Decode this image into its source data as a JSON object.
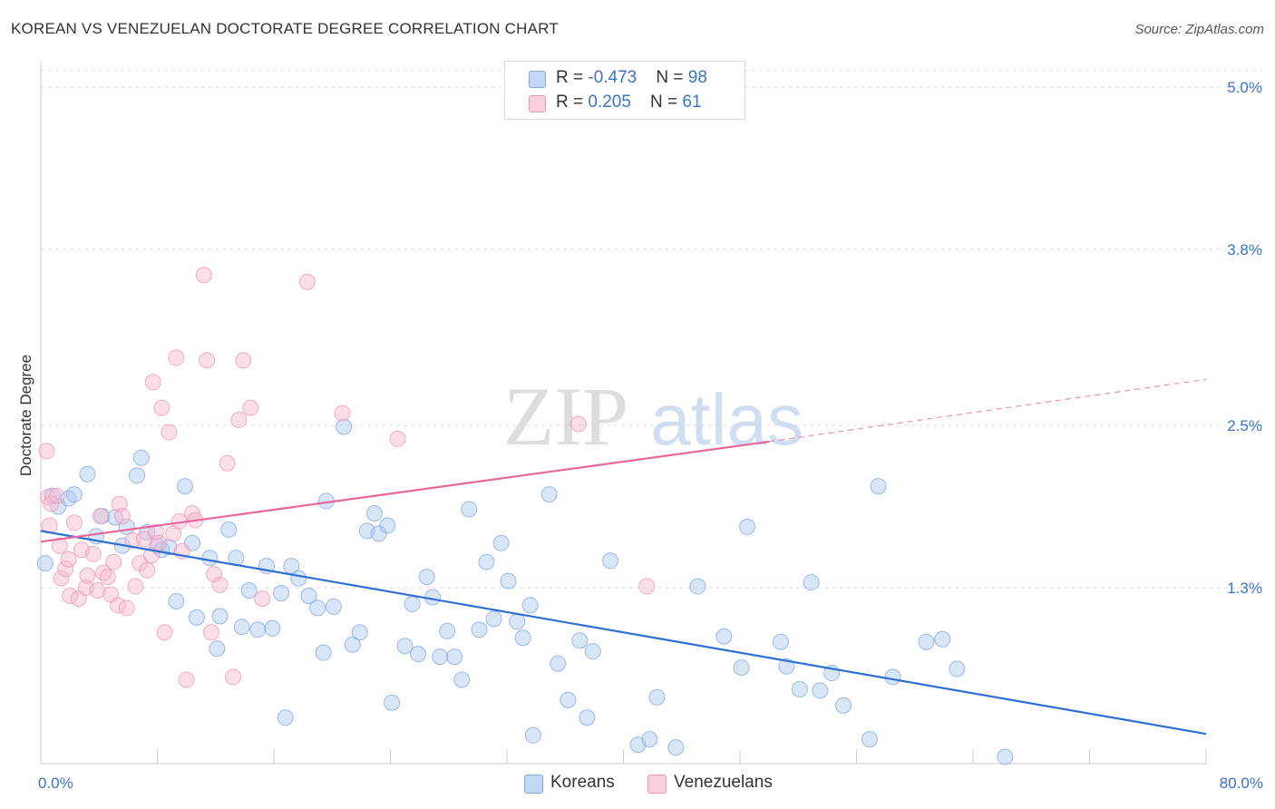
{
  "title": "KOREAN VS VENEZUELAN DOCTORATE DEGREE CORRELATION CHART",
  "source": "Source: ZipAtlas.com",
  "watermark": {
    "zip": "ZIP",
    "atlas": "atlas"
  },
  "legend_top": {
    "rows": [
      {
        "r_label": "R = ",
        "r_value": "-0.473",
        "n_label": "N = ",
        "n_value": "98"
      },
      {
        "r_label": "R = ",
        "r_value": " 0.205",
        "n_label": "N = ",
        "n_value": " 61"
      }
    ]
  },
  "chart_data": {
    "type": "scatter",
    "ylabel": "Doctorate Degree",
    "xlim": [
      0,
      80
    ],
    "ylim": [
      0,
      5.2
    ],
    "x_ticks": [
      {
        "value": 0,
        "label": "0.0%"
      },
      {
        "value": 80,
        "label": "80.0%"
      }
    ],
    "y_ticks": [
      {
        "value": 1.3,
        "label": "1.3%"
      },
      {
        "value": 2.5,
        "label": "2.5%"
      },
      {
        "value": 3.8,
        "label": "3.8%"
      },
      {
        "value": 5.0,
        "label": "5.0%"
      }
    ],
    "grid": "horizontal dashed",
    "legend_position": "bottom-center",
    "series": [
      {
        "name": "Koreans",
        "color": "#a9c7ef",
        "line_color": "#2f6fd1",
        "trend": {
          "x": [
            0,
            80
          ],
          "y": [
            1.72,
            0.22
          ],
          "style": "solid"
        },
        "points": [
          [
            0.3,
            1.48
          ],
          [
            0.8,
            1.98
          ],
          [
            1.2,
            1.9
          ],
          [
            1.9,
            1.96
          ],
          [
            2.3,
            1.99
          ],
          [
            3.2,
            2.14
          ],
          [
            3.8,
            1.68
          ],
          [
            4.2,
            1.83
          ],
          [
            5.1,
            1.82
          ],
          [
            5.6,
            1.61
          ],
          [
            5.9,
            1.75
          ],
          [
            6.6,
            2.13
          ],
          [
            6.9,
            2.26
          ],
          [
            7.3,
            1.71
          ],
          [
            8.0,
            1.61
          ],
          [
            8.3,
            1.58
          ],
          [
            8.8,
            1.6
          ],
          [
            9.3,
            1.2
          ],
          [
            9.9,
            2.05
          ],
          [
            10.4,
            1.63
          ],
          [
            10.7,
            1.08
          ],
          [
            11.6,
            1.52
          ],
          [
            12.1,
            0.85
          ],
          [
            12.3,
            1.09
          ],
          [
            12.9,
            1.73
          ],
          [
            13.4,
            1.52
          ],
          [
            13.8,
            1.01
          ],
          [
            14.3,
            1.28
          ],
          [
            14.9,
            0.99
          ],
          [
            15.5,
            1.46
          ],
          [
            15.9,
            1.0
          ],
          [
            16.5,
            1.26
          ],
          [
            16.8,
            0.34
          ],
          [
            17.2,
            1.46
          ],
          [
            17.7,
            1.37
          ],
          [
            18.4,
            1.24
          ],
          [
            19.0,
            1.15
          ],
          [
            19.4,
            0.82
          ],
          [
            19.6,
            1.94
          ],
          [
            20.1,
            1.16
          ],
          [
            20.8,
            2.49
          ],
          [
            21.4,
            0.88
          ],
          [
            21.9,
            0.97
          ],
          [
            22.4,
            1.72
          ],
          [
            22.9,
            1.85
          ],
          [
            23.2,
            1.7
          ],
          [
            23.8,
            1.76
          ],
          [
            24.1,
            0.45
          ],
          [
            25.0,
            0.87
          ],
          [
            25.5,
            1.18
          ],
          [
            25.9,
            0.81
          ],
          [
            26.5,
            1.38
          ],
          [
            26.9,
            1.23
          ],
          [
            27.4,
            0.79
          ],
          [
            27.9,
            0.98
          ],
          [
            28.4,
            0.79
          ],
          [
            28.9,
            0.62
          ],
          [
            29.4,
            1.88
          ],
          [
            30.1,
            0.99
          ],
          [
            30.6,
            1.49
          ],
          [
            31.1,
            1.07
          ],
          [
            31.6,
            1.63
          ],
          [
            32.1,
            1.35
          ],
          [
            32.7,
            1.05
          ],
          [
            33.1,
            0.93
          ],
          [
            33.6,
            1.17
          ],
          [
            33.8,
            0.21
          ],
          [
            34.9,
            1.99
          ],
          [
            35.5,
            0.74
          ],
          [
            36.2,
            0.47
          ],
          [
            37.0,
            0.91
          ],
          [
            37.5,
            0.34
          ],
          [
            37.9,
            0.83
          ],
          [
            39.1,
            1.5
          ],
          [
            41.0,
            0.14
          ],
          [
            41.8,
            0.18
          ],
          [
            42.3,
            0.49
          ],
          [
            43.6,
            0.12
          ],
          [
            45.1,
            1.31
          ],
          [
            46.9,
            0.94
          ],
          [
            48.1,
            0.71
          ],
          [
            48.5,
            1.75
          ],
          [
            50.8,
            0.9
          ],
          [
            51.2,
            0.72
          ],
          [
            52.1,
            0.55
          ],
          [
            52.9,
            1.34
          ],
          [
            53.5,
            0.54
          ],
          [
            54.3,
            0.67
          ],
          [
            55.1,
            0.43
          ],
          [
            56.9,
            0.18
          ],
          [
            57.5,
            2.05
          ],
          [
            58.5,
            0.64
          ],
          [
            60.8,
            0.9
          ],
          [
            61.9,
            0.92
          ],
          [
            62.9,
            0.7
          ],
          [
            66.2,
            0.05
          ]
        ]
      },
      {
        "name": "Venezuelans",
        "color": "#f6b9cd",
        "line_color": "#e8679a",
        "trend": {
          "x": [
            0,
            50
          ],
          "y": [
            1.64,
            2.38
          ],
          "style": "solid"
        },
        "trend_extension": {
          "x": [
            50,
            80
          ],
          "y": [
            2.38,
            2.84
          ],
          "style": "dashed"
        },
        "points": [
          [
            0.4,
            2.31
          ],
          [
            0.5,
            1.97
          ],
          [
            0.6,
            1.76
          ],
          [
            0.7,
            1.92
          ],
          [
            1.1,
            1.98
          ],
          [
            1.3,
            1.61
          ],
          [
            1.4,
            1.37
          ],
          [
            1.7,
            1.44
          ],
          [
            1.9,
            1.51
          ],
          [
            2.0,
            1.24
          ],
          [
            2.3,
            1.78
          ],
          [
            2.6,
            1.22
          ],
          [
            2.8,
            1.58
          ],
          [
            3.1,
            1.3
          ],
          [
            3.2,
            1.39
          ],
          [
            3.6,
            1.55
          ],
          [
            3.9,
            1.28
          ],
          [
            4.1,
            1.83
          ],
          [
            4.3,
            1.41
          ],
          [
            4.6,
            1.38
          ],
          [
            4.8,
            1.25
          ],
          [
            5.0,
            1.49
          ],
          [
            5.3,
            1.17
          ],
          [
            5.4,
            1.92
          ],
          [
            5.6,
            1.83
          ],
          [
            5.9,
            1.15
          ],
          [
            6.3,
            1.65
          ],
          [
            6.5,
            1.31
          ],
          [
            6.8,
            1.48
          ],
          [
            7.1,
            1.66
          ],
          [
            7.3,
            1.43
          ],
          [
            7.6,
            1.54
          ],
          [
            7.7,
            2.82
          ],
          [
            7.9,
            1.71
          ],
          [
            8.1,
            1.63
          ],
          [
            8.3,
            2.63
          ],
          [
            8.5,
            0.97
          ],
          [
            8.8,
            2.45
          ],
          [
            9.1,
            1.7
          ],
          [
            9.3,
            3.0
          ],
          [
            9.5,
            1.79
          ],
          [
            9.7,
            1.57
          ],
          [
            10.0,
            0.62
          ],
          [
            10.4,
            1.85
          ],
          [
            10.6,
            1.8
          ],
          [
            11.2,
            3.61
          ],
          [
            11.4,
            2.98
          ],
          [
            11.7,
            0.97
          ],
          [
            11.9,
            1.4
          ],
          [
            12.3,
            1.32
          ],
          [
            12.8,
            2.22
          ],
          [
            13.2,
            0.64
          ],
          [
            13.6,
            2.54
          ],
          [
            13.9,
            2.98
          ],
          [
            14.4,
            2.63
          ],
          [
            15.2,
            1.22
          ],
          [
            18.3,
            3.56
          ],
          [
            20.7,
            2.59
          ],
          [
            24.5,
            2.4
          ],
          [
            36.9,
            2.51
          ],
          [
            41.6,
            1.31
          ]
        ]
      }
    ]
  },
  "legend_bottom": {
    "items": [
      {
        "label": "Koreans",
        "color": "#a9c7ef"
      },
      {
        "label": "Venezuelans",
        "color": "#f6b9cd"
      }
    ]
  },
  "colors": {
    "accent_blue": "#3b73c6",
    "korean_fill": "#a9c7ef",
    "venezuelan_fill": "#f6b9cd",
    "korean_line": "#2f6fd1",
    "venezuelan_line": "#e8679a"
  }
}
